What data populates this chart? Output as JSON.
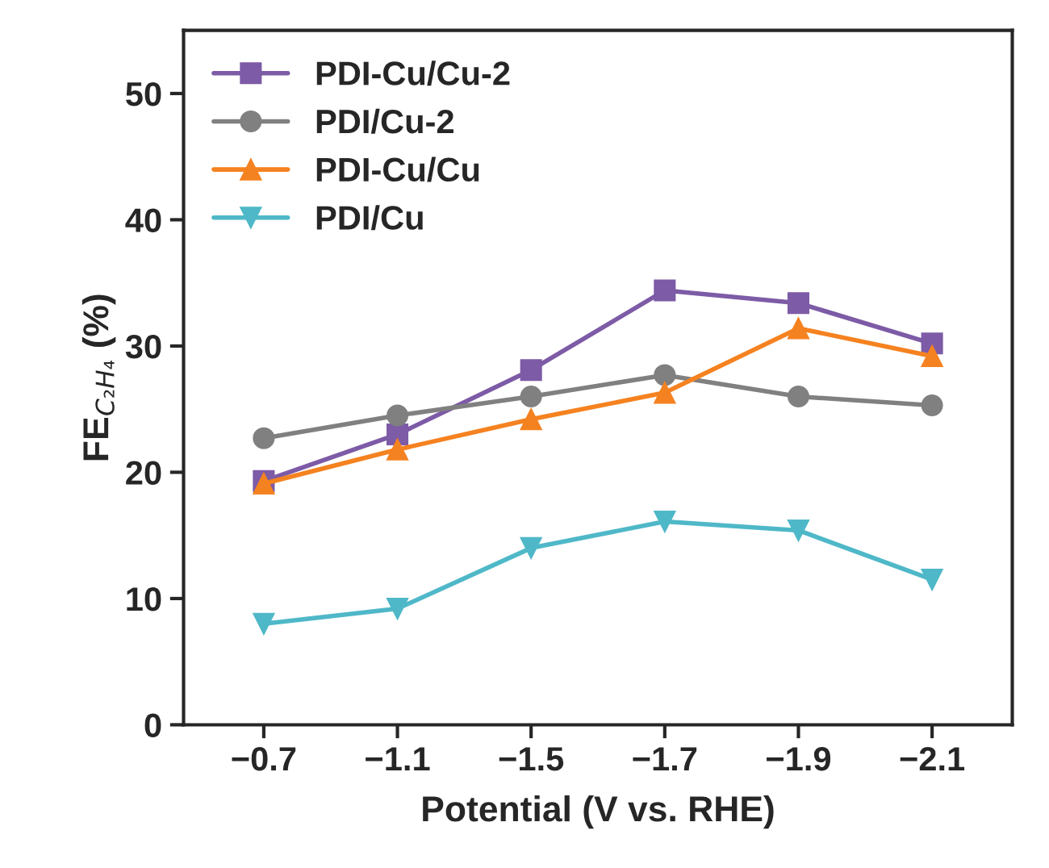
{
  "chart_data": {
    "type": "line",
    "xlabel": "Potential (V vs. RHE)",
    "ylabel": "FE$_{C₂H₄}$ (%)",
    "categories": [
      "−0.7",
      "−1.1",
      "−1.5",
      "−1.7",
      "−1.9",
      "−2.1"
    ],
    "ylim": [
      0,
      55
    ],
    "yticks": [
      0,
      10,
      20,
      30,
      40,
      50
    ],
    "grid": false,
    "legend": "top left",
    "series": [
      {
        "name": "PDI-Cu/Cu-2",
        "color": "#7d5ba6",
        "marker": "square",
        "values": [
          19.3,
          23.0,
          28.1,
          34.4,
          33.4,
          30.2
        ]
      },
      {
        "name": "PDI/Cu-2",
        "color": "#808080",
        "marker": "circle",
        "values": [
          22.7,
          24.5,
          26.0,
          27.7,
          26.0,
          25.3
        ]
      },
      {
        "name": "PDI-Cu/Cu",
        "color": "#f58220",
        "marker": "triangle",
        "values": [
          19.1,
          21.8,
          24.2,
          26.3,
          31.4,
          29.2
        ]
      },
      {
        "name": "PDI/Cu",
        "color": "#4fb8c8",
        "marker": "triangle_down",
        "values": [
          8.0,
          9.2,
          14.0,
          16.1,
          15.4,
          11.5
        ]
      }
    ]
  }
}
